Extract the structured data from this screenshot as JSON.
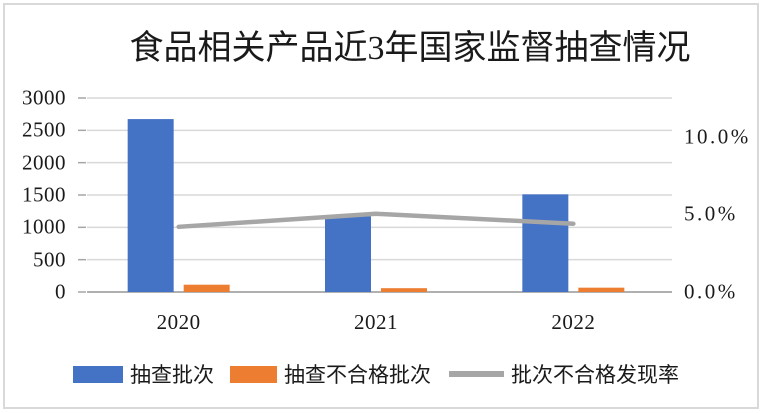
{
  "title": "食品相关产品近3年国家监督抽查情况",
  "chart_data": {
    "type": "combo-bar-line",
    "categories": [
      "2020",
      "2021",
      "2022"
    ],
    "series": [
      {
        "name": "抽查批次",
        "type": "bar",
        "color": "#4472c4",
        "axis": "left",
        "values": [
          2674,
          1170,
          1510
        ]
      },
      {
        "name": "抽查不合格批次",
        "type": "bar",
        "color": "#ed7d31",
        "axis": "left",
        "values": [
          113,
          59,
          67
        ]
      },
      {
        "name": "批次不合格发现率",
        "type": "line",
        "color": "#a6a6a6",
        "axis": "right",
        "values": [
          4.2,
          5.04,
          4.4
        ]
      }
    ],
    "left_axis": {
      "min": 0,
      "max": 3000,
      "step": 500,
      "tick_labels": [
        "0",
        "500",
        "1000",
        "1500",
        "2000",
        "2500",
        "3000"
      ]
    },
    "right_axis": {
      "min": 0,
      "max": 12.5,
      "tick_labels": [
        "0.0%",
        "5.0%",
        "10.0%"
      ],
      "tick_values": [
        0,
        5,
        10
      ]
    },
    "grid": true,
    "legend_position": "bottom",
    "title": "食品相关产品近3年国家监督抽查情况"
  },
  "colors": {
    "bar_blue": "#4472c4",
    "bar_orange": "#ed7d31",
    "line_gray": "#a6a6a6",
    "gridline": "#d9d9d9",
    "axis_line": "#a6a6a6",
    "frame_border": "#d9d9d9"
  }
}
